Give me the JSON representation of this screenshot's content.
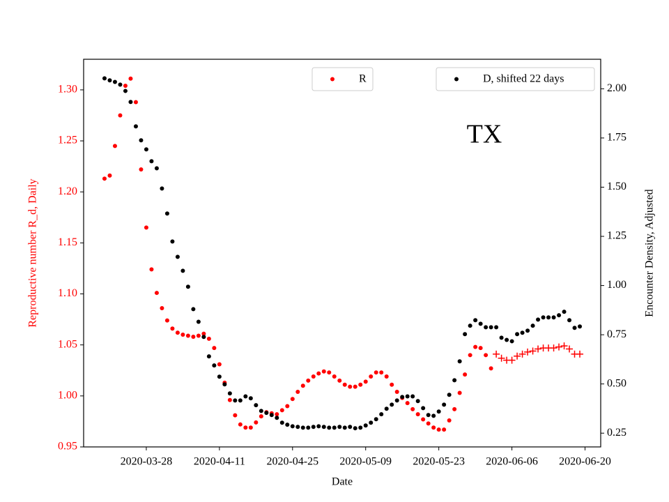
{
  "chart_data": {
    "type": "scatter",
    "annotation": "TX",
    "x_label": "Date",
    "y_label": "Reproductive number R_d, Daily",
    "y2_label": "Encounter Density, Adjusted",
    "xlim": [
      "2020-03-16",
      "2020-06-23"
    ],
    "xticks": [
      "2020-03-28",
      "2020-04-11",
      "2020-04-25",
      "2020-05-09",
      "2020-05-23",
      "2020-06-06",
      "2020-06-20"
    ],
    "ylim": [
      0.95,
      1.33
    ],
    "yticks": [
      0.95,
      {
        "value": 1,
        "label": "1.00"
      },
      1.05,
      {
        "value": 1.1,
        "label": "1.10"
      },
      1.15,
      {
        "value": 1.2,
        "label": "1.20"
      },
      1.25,
      {
        "value": 1.3,
        "label": "1.30"
      }
    ],
    "y2lim": [
      0.18,
      2.15
    ],
    "y2ticks": [
      0.25,
      {
        "value": 0.5,
        "label": "0.50"
      },
      0.75,
      {
        "value": 1,
        "label": "1.00"
      },
      1.25,
      {
        "value": 1.5,
        "label": "1.50"
      },
      1.75,
      {
        "value": 2,
        "label": "2.00"
      }
    ],
    "y_label_color": "#ff0000",
    "x": [
      "2020-03-20",
      "2020-03-21",
      "2020-03-22",
      "2020-03-23",
      "2020-03-24",
      "2020-03-25",
      "2020-03-26",
      "2020-03-27",
      "2020-03-28",
      "2020-03-29",
      "2020-03-30",
      "2020-03-31",
      "2020-04-01",
      "2020-04-02",
      "2020-04-03",
      "2020-04-04",
      "2020-04-05",
      "2020-04-06",
      "2020-04-07",
      "2020-04-08",
      "2020-04-09",
      "2020-04-10",
      "2020-04-11",
      "2020-04-12",
      "2020-04-13",
      "2020-04-14",
      "2020-04-15",
      "2020-04-16",
      "2020-04-17",
      "2020-04-18",
      "2020-04-19",
      "2020-04-20",
      "2020-04-21",
      "2020-04-22",
      "2020-04-23",
      "2020-04-24",
      "2020-04-25",
      "2020-04-26",
      "2020-04-27",
      "2020-04-28",
      "2020-04-29",
      "2020-04-30",
      "2020-05-01",
      "2020-05-02",
      "2020-05-03",
      "2020-05-04",
      "2020-05-05",
      "2020-05-06",
      "2020-05-07",
      "2020-05-08",
      "2020-05-09",
      "2020-05-10",
      "2020-05-11",
      "2020-05-12",
      "2020-05-13",
      "2020-05-14",
      "2020-05-15",
      "2020-05-16",
      "2020-05-17",
      "2020-05-18",
      "2020-05-19",
      "2020-05-20",
      "2020-05-21",
      "2020-05-22",
      "2020-05-23",
      "2020-05-24",
      "2020-05-25",
      "2020-05-26",
      "2020-05-27",
      "2020-05-28",
      "2020-05-29",
      "2020-05-30",
      "2020-05-31",
      "2020-06-01",
      "2020-06-02",
      "2020-06-03",
      "2020-06-04",
      "2020-06-05",
      "2020-06-06",
      "2020-06-07",
      "2020-06-08",
      "2020-06-09",
      "2020-06-10",
      "2020-06-11",
      "2020-06-12",
      "2020-06-13",
      "2020-06-14",
      "2020-06-15",
      "2020-06-16",
      "2020-06-17",
      "2020-06-18",
      "2020-06-19"
    ],
    "series": [
      {
        "name": "R",
        "color": "#ff0000",
        "marker": "o",
        "legend_loc": "upper center",
        "values": [
          1.213,
          1.216,
          1.245,
          1.275,
          1.304,
          1.311,
          1.288,
          1.222,
          1.165,
          1.124,
          1.101,
          1.086,
          1.074,
          1.066,
          1.062,
          1.06,
          1.059,
          1.058,
          1.059,
          1.061,
          1.056,
          1.047,
          1.031,
          1.013,
          0.996,
          0.981,
          0.972,
          0.969,
          0.969,
          0.974,
          0.98,
          0.984,
          0.983,
          0.982,
          0.986,
          0.99,
          0.997,
          1.004,
          1.01,
          1.015,
          1.019,
          1.022,
          1.024,
          1.023,
          1.019,
          1.015,
          1.011,
          1.009,
          1.009,
          1.011,
          1.014,
          1.019,
          1.023,
          1.023,
          1.019,
          1.011,
          1.004,
          0.998,
          0.993,
          0.987,
          0.982,
          0.977,
          0.973,
          0.969,
          0.967,
          0.967,
          0.976,
          0.987,
          1.003,
          1.021,
          1.04,
          1.048,
          1.047,
          1.04,
          1.027,
          null,
          null,
          null,
          null,
          null,
          null,
          null,
          null,
          null,
          null,
          null,
          null,
          null,
          null,
          null,
          null,
          null
        ]
      },
      {
        "color": "#ff0000",
        "marker": "+",
        "values": [
          null,
          null,
          null,
          null,
          null,
          null,
          null,
          null,
          null,
          null,
          null,
          null,
          null,
          null,
          null,
          null,
          null,
          null,
          null,
          null,
          null,
          null,
          null,
          null,
          null,
          null,
          null,
          null,
          null,
          null,
          null,
          null,
          null,
          null,
          null,
          null,
          null,
          null,
          null,
          null,
          null,
          null,
          null,
          null,
          null,
          null,
          null,
          null,
          null,
          null,
          null,
          null,
          null,
          null,
          null,
          null,
          null,
          null,
          null,
          null,
          null,
          null,
          null,
          null,
          null,
          null,
          null,
          null,
          null,
          null,
          null,
          null,
          null,
          null,
          null,
          1.041,
          1.037,
          1.035,
          1.035,
          1.039,
          1.041,
          1.043,
          1.044,
          1.046,
          1.047,
          1.047,
          1.047,
          1.048,
          1.049,
          1.046,
          1.041,
          1.041
        ]
      },
      {
        "name": "D, shifted 22 days",
        "color": "#000000",
        "marker": "o",
        "axis": "y2",
        "legend_loc": "upper right",
        "values": [
          2.053,
          2.043,
          2.035,
          2.021,
          1.989,
          1.933,
          1.809,
          1.738,
          1.692,
          1.632,
          1.596,
          1.493,
          1.366,
          1.224,
          1.146,
          1.075,
          0.994,
          0.88,
          0.816,
          0.739,
          0.64,
          0.594,
          0.537,
          0.498,
          0.452,
          0.416,
          0.416,
          0.437,
          0.427,
          0.392,
          0.363,
          0.353,
          0.342,
          0.328,
          0.303,
          0.293,
          0.285,
          0.282,
          0.278,
          0.278,
          0.282,
          0.285,
          0.282,
          0.278,
          0.278,
          0.282,
          0.278,
          0.282,
          0.275,
          0.278,
          0.289,
          0.303,
          0.321,
          0.346,
          0.374,
          0.395,
          0.416,
          0.434,
          0.437,
          0.437,
          0.413,
          0.377,
          0.342,
          0.338,
          0.36,
          0.395,
          0.445,
          0.519,
          0.615,
          0.753,
          0.796,
          0.824,
          0.806,
          0.788,
          0.788,
          0.788,
          0.735,
          0.724,
          0.717,
          0.753,
          0.76,
          0.771,
          0.796,
          0.827,
          0.838,
          0.838,
          0.838,
          0.849,
          0.867,
          0.824,
          0.785,
          0.792
        ]
      }
    ]
  }
}
